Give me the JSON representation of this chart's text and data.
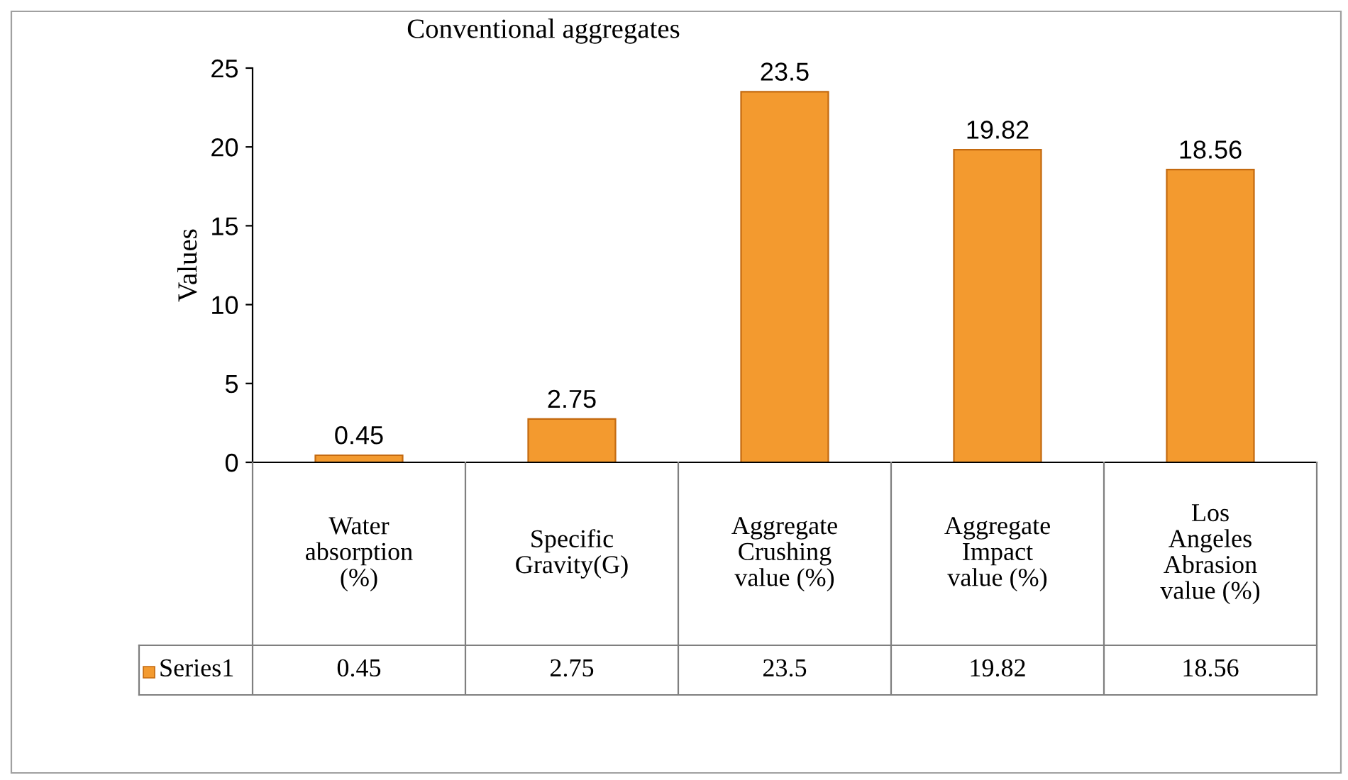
{
  "chart_data": {
    "type": "bar",
    "title": "Conventional aggregates",
    "ylabel": "Values",
    "categories": [
      "Water\nabsorption\n(%)",
      "Specific\nGravity(G)",
      "Aggregate\nCrushing\nvalue (%)",
      "Aggregate\nImpact\nvalue (%)",
      "Los\nAngeles\nAbrasion\nvalue (%)"
    ],
    "series": [
      {
        "name": "Series1",
        "color": "#f39a2f",
        "values": [
          0.45,
          2.75,
          23.5,
          19.82,
          18.56
        ],
        "value_labels": [
          "0.45",
          "2.75",
          "23.5",
          "19.82",
          "18.56"
        ]
      }
    ],
    "annotations": [
      "0.45",
      "2.75",
      "23.5",
      "19.82",
      "18.56"
    ],
    "ylim": [
      0,
      25
    ],
    "yticks": [
      0,
      5,
      10,
      15,
      20,
      25
    ],
    "data_labels": true,
    "grid": false,
    "legend": "bottom"
  }
}
